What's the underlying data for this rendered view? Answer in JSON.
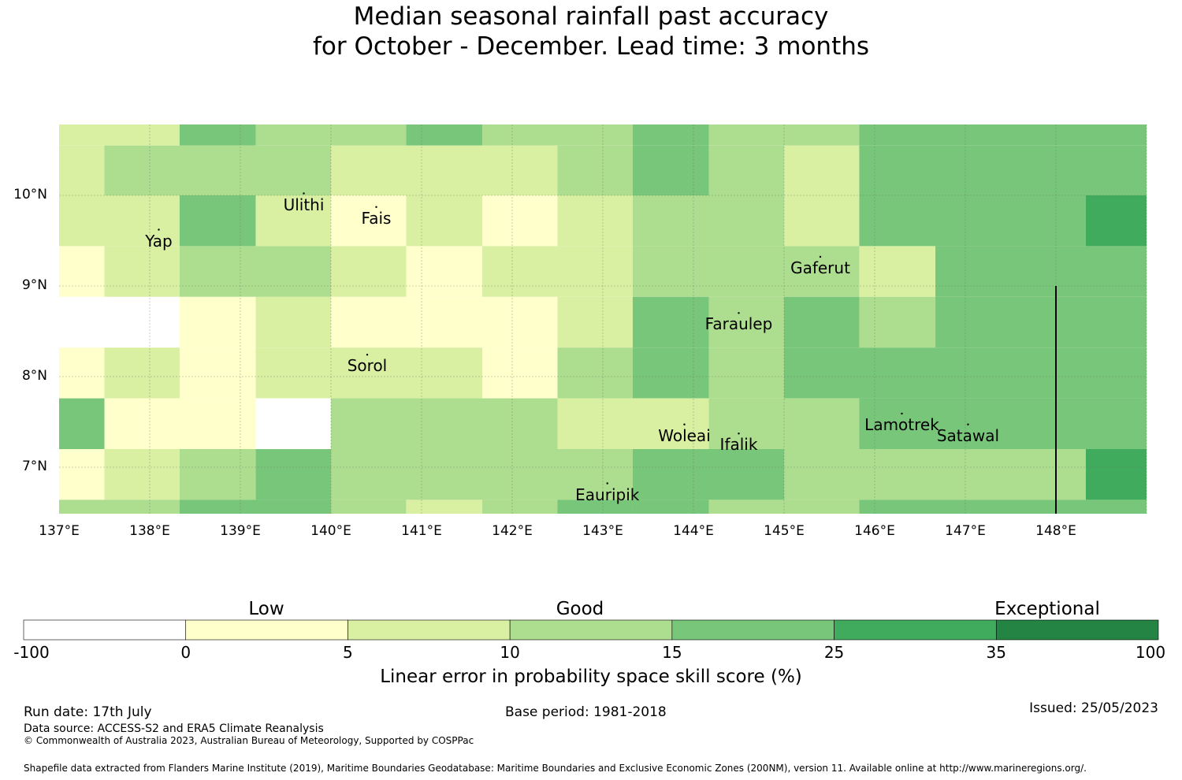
{
  "title_line1": "Median seasonal rainfall past accuracy",
  "title_line2": "for October - December. Lead time: 3 months",
  "map": {
    "lon_ticks": [
      "137°E",
      "138°E",
      "139°E",
      "140°E",
      "141°E",
      "142°E",
      "143°E",
      "144°E",
      "145°E",
      "146°E",
      "147°E",
      "148°E"
    ],
    "lat_ticks": [
      "10°N",
      "9°N",
      "8°N",
      "7°N"
    ],
    "places": [
      {
        "name": "Ulithi",
        "lon": 139.7,
        "lat": 9.9
      },
      {
        "name": "Fais",
        "lon": 140.5,
        "lat": 9.75
      },
      {
        "name": "Yap",
        "lon": 138.1,
        "lat": 9.5
      },
      {
        "name": "Gaferut",
        "lon": 145.4,
        "lat": 9.2
      },
      {
        "name": "Faraulep",
        "lon": 144.5,
        "lat": 8.58
      },
      {
        "name": "Sorol",
        "lon": 140.4,
        "lat": 8.12
      },
      {
        "name": "Woleai",
        "lon": 143.9,
        "lat": 7.35
      },
      {
        "name": "Ifalik",
        "lon": 144.5,
        "lat": 7.25
      },
      {
        "name": "Lamotrek",
        "lon": 146.3,
        "lat": 7.47
      },
      {
        "name": "Satawal",
        "lon": 147.03,
        "lat": 7.35
      },
      {
        "name": "Eauripik",
        "lon": 143.05,
        "lat": 6.7
      }
    ],
    "grid": {
      "rows": [
        {
          "lat_top": 10.8,
          "lat_bottom": 10.55,
          "cells": [
            [
              137.0,
              138.33,
              "5-10"
            ],
            [
              138.33,
              139.17,
              "15-25"
            ],
            [
              139.17,
              140.83,
              "10-15"
            ],
            [
              140.83,
              141.67,
              "15-25"
            ],
            [
              141.67,
              143.33,
              "10-15"
            ],
            [
              143.33,
              144.17,
              "15-25"
            ],
            [
              144.17,
              145.83,
              "10-15"
            ],
            [
              145.83,
              149.0,
              "15-25"
            ]
          ]
        },
        {
          "lat_top": 10.55,
          "lat_bottom": 10.0,
          "cells": [
            [
              137.0,
              137.5,
              "5-10"
            ],
            [
              137.5,
              140.0,
              "10-15"
            ],
            [
              140.0,
              142.5,
              "5-10"
            ],
            [
              142.5,
              143.33,
              "10-15"
            ],
            [
              143.33,
              144.17,
              "15-25"
            ],
            [
              144.17,
              145.0,
              "10-15"
            ],
            [
              145.0,
              145.83,
              "5-10"
            ],
            [
              145.83,
              149.0,
              "15-25"
            ]
          ]
        },
        {
          "lat_top": 10.0,
          "lat_bottom": 9.44,
          "cells": [
            [
              137.0,
              138.33,
              "5-10"
            ],
            [
              138.33,
              139.17,
              "15-25"
            ],
            [
              139.17,
              140.0,
              "5-10"
            ],
            [
              140.0,
              140.83,
              "0-5"
            ],
            [
              140.83,
              141.67,
              "5-10"
            ],
            [
              141.67,
              142.5,
              "0-5"
            ],
            [
              142.5,
              143.33,
              "5-10"
            ],
            [
              143.33,
              145.0,
              "10-15"
            ],
            [
              145.0,
              145.83,
              "5-10"
            ],
            [
              145.83,
              148.33,
              "15-25"
            ],
            [
              148.33,
              149.0,
              "25-35"
            ]
          ]
        },
        {
          "lat_top": 9.44,
          "lat_bottom": 8.88,
          "cells": [
            [
              137.0,
              137.5,
              "0-5"
            ],
            [
              137.5,
              138.33,
              "5-10"
            ],
            [
              138.33,
              140.0,
              "10-15"
            ],
            [
              140.0,
              140.83,
              "5-10"
            ],
            [
              140.83,
              141.67,
              "0-5"
            ],
            [
              141.67,
              143.33,
              "5-10"
            ],
            [
              143.33,
              145.83,
              "10-15"
            ],
            [
              145.83,
              146.67,
              "5-10"
            ],
            [
              146.67,
              149.0,
              "15-25"
            ]
          ]
        },
        {
          "lat_top": 8.88,
          "lat_bottom": 8.32,
          "cells": [
            [
              137.0,
              138.33,
              "-100-0"
            ],
            [
              138.33,
              139.17,
              "0-5"
            ],
            [
              139.17,
              140.0,
              "5-10"
            ],
            [
              140.0,
              142.5,
              "0-5"
            ],
            [
              142.5,
              143.33,
              "5-10"
            ],
            [
              143.33,
              144.17,
              "15-25"
            ],
            [
              144.17,
              145.0,
              "10-15"
            ],
            [
              145.0,
              145.83,
              "15-25"
            ],
            [
              145.83,
              146.67,
              "10-15"
            ],
            [
              146.67,
              149.0,
              "15-25"
            ]
          ]
        },
        {
          "lat_top": 8.32,
          "lat_bottom": 7.76,
          "cells": [
            [
              137.0,
              137.5,
              "0-5"
            ],
            [
              137.5,
              138.33,
              "5-10"
            ],
            [
              138.33,
              139.17,
              "0-5"
            ],
            [
              139.17,
              141.67,
              "5-10"
            ],
            [
              141.67,
              142.5,
              "0-5"
            ],
            [
              142.5,
              143.33,
              "10-15"
            ],
            [
              143.33,
              144.17,
              "15-25"
            ],
            [
              144.17,
              145.0,
              "10-15"
            ],
            [
              145.0,
              149.0,
              "15-25"
            ]
          ]
        },
        {
          "lat_top": 7.76,
          "lat_bottom": 7.2,
          "cells": [
            [
              137.0,
              137.5,
              "15-25"
            ],
            [
              137.5,
              139.17,
              "0-5"
            ],
            [
              139.17,
              140.0,
              "-100-0"
            ],
            [
              140.0,
              142.5,
              "10-15"
            ],
            [
              142.5,
              144.17,
              "5-10"
            ],
            [
              144.17,
              145.83,
              "10-15"
            ],
            [
              145.83,
              149.0,
              "15-25"
            ]
          ]
        },
        {
          "lat_top": 7.2,
          "lat_bottom": 6.64,
          "cells": [
            [
              137.0,
              137.5,
              "0-5"
            ],
            [
              137.5,
              138.33,
              "5-10"
            ],
            [
              138.33,
              139.17,
              "10-15"
            ],
            [
              139.17,
              140.0,
              "15-25"
            ],
            [
              140.0,
              143.33,
              "10-15"
            ],
            [
              143.33,
              145.0,
              "15-25"
            ],
            [
              145.0,
              148.33,
              "10-15"
            ],
            [
              148.33,
              149.0,
              "25-35"
            ]
          ]
        },
        {
          "lat_top": 6.64,
          "lat_bottom": 6.48,
          "cells": [
            [
              137.0,
              138.33,
              "10-15"
            ],
            [
              138.33,
              140.0,
              "15-25"
            ],
            [
              140.0,
              140.83,
              "10-15"
            ],
            [
              140.83,
              141.67,
              "5-10"
            ],
            [
              141.67,
              142.5,
              "10-15"
            ],
            [
              142.5,
              143.33,
              "15-25"
            ],
            [
              143.33,
              144.17,
              "15-25"
            ],
            [
              144.17,
              145.0,
              "10-15"
            ],
            [
              145.0,
              145.83,
              "10-15"
            ],
            [
              145.83,
              149.0,
              "15-25"
            ]
          ]
        }
      ]
    },
    "boundary_line": {
      "lon": 148.0,
      "lat_from": 6.48,
      "lat_to": 9.0
    }
  },
  "colorbar": {
    "categories": [
      "Low",
      "Good",
      "Exceptional"
    ],
    "ticks": [
      "-100",
      "0",
      "5",
      "10",
      "15",
      "25",
      "35",
      "100"
    ],
    "bins": [
      {
        "range": "-100-0",
        "color": "#ffffff"
      },
      {
        "range": "0-5",
        "color": "#ffffcc"
      },
      {
        "range": "5-10",
        "color": "#d9f0a3"
      },
      {
        "range": "10-15",
        "color": "#addd8e"
      },
      {
        "range": "15-25",
        "color": "#78c679"
      },
      {
        "range": "25-35",
        "color": "#41ab5d"
      },
      {
        "range": "35-100",
        "color": "#238443"
      }
    ],
    "label": "Linear error in probability space skill score (%)"
  },
  "footer": {
    "run_date": "Run date: 17th July",
    "base_period": "Base period: 1981-2018",
    "issued": "Issued: 25/05/2023",
    "data_source": "Data source: ACCESS-S2 and ERA5 Climate Reanalysis",
    "copyright": "© Commonwealth of Australia 2023, Australian Bureau of Meteorology, Supported by COSPPac",
    "shapefile": "Shapefile data extracted from Flanders Marine Institute (2019), Maritime Boundaries Geodatabase: Maritime Boundaries and Exclusive Economic Zones (200NM), version 11. Available online at http://www.marineregions.org/."
  }
}
